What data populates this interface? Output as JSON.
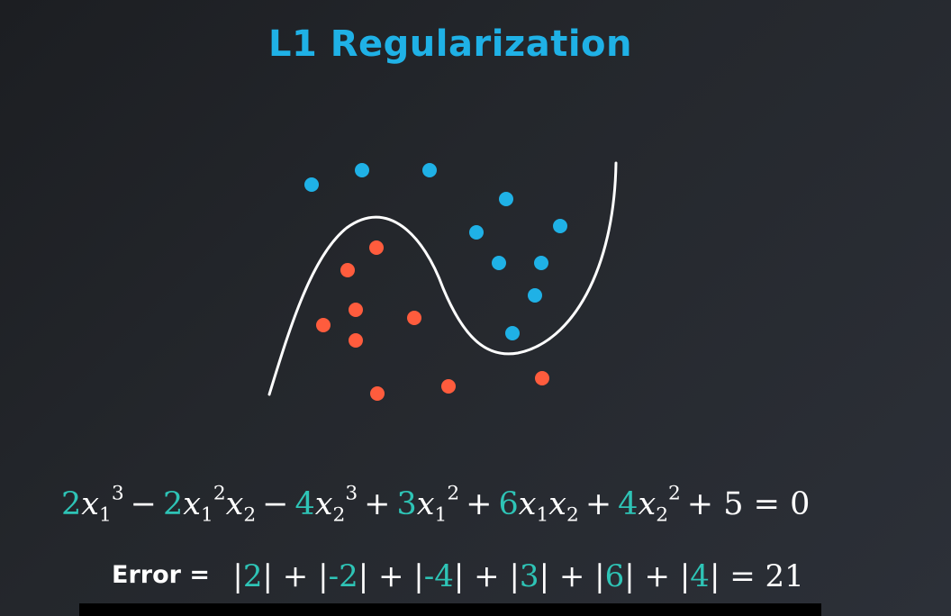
{
  "title": "L1 Regularization",
  "colors": {
    "accent": "#1fb1e6",
    "coef": "#2ec4b6",
    "blue_point": "#1fb1e6",
    "red_point": "#ff5c3d",
    "curve": "#ffffff"
  },
  "equation": {
    "terms": [
      {
        "sign": "",
        "coef": "2",
        "vars": [
          {
            "v": "x",
            "sub": "1",
            "sup": "3"
          }
        ]
      },
      {
        "sign": "−",
        "coef": "2",
        "vars": [
          {
            "v": "x",
            "sub": "1",
            "sup": "2"
          },
          {
            "v": "x",
            "sub": "2",
            "sup": ""
          }
        ]
      },
      {
        "sign": "−",
        "coef": "4",
        "vars": [
          {
            "v": "x",
            "sub": "2",
            "sup": "3"
          }
        ]
      },
      {
        "sign": "+",
        "coef": "3",
        "vars": [
          {
            "v": "x",
            "sub": "1",
            "sup": "2"
          }
        ]
      },
      {
        "sign": "+",
        "coef": "6",
        "vars": [
          {
            "v": "x",
            "sub": "1",
            "sup": ""
          },
          {
            "v": "x",
            "sub": "2",
            "sup": ""
          }
        ]
      },
      {
        "sign": "+",
        "coef": "4",
        "vars": [
          {
            "v": "x",
            "sub": "2",
            "sup": "2"
          }
        ]
      }
    ],
    "constant": "+ 5 = 0"
  },
  "error": {
    "label": "Error =",
    "values": [
      "2",
      "-2",
      "-4",
      "3",
      "6",
      "4"
    ],
    "result": "= 21"
  }
}
